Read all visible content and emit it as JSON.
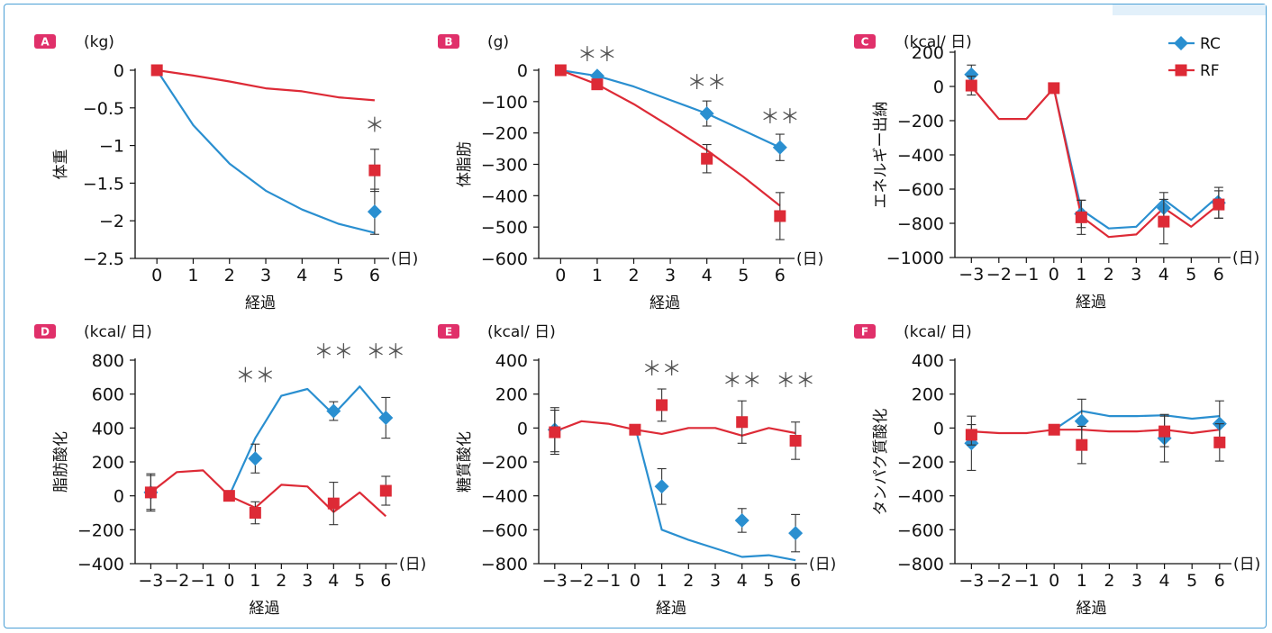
{
  "colors": {
    "rc": "#2a8fd0",
    "rf": "#dd2a36",
    "badge": "#e0306a",
    "frame": "#4a9fd5"
  },
  "legend": [
    {
      "key": "rc",
      "label": "RC"
    },
    {
      "key": "rf",
      "label": "RF"
    }
  ],
  "chart_data": [
    {
      "panel": "A",
      "type": "line",
      "unit": "(kg)",
      "ylabel": "体重",
      "xlabel": "経過",
      "xunit": "(日)",
      "xlim": [
        -0.6,
        6.3
      ],
      "ylim": [
        -2.5,
        0
      ],
      "yticks": [
        0,
        -0.5,
        -1,
        -1.5,
        -2,
        -2.5
      ],
      "ytick_labels": [
        "0",
        "−0.5",
        "−1",
        "−1.5",
        "−2",
        "−2.5"
      ],
      "xticks": [
        0,
        1,
        2,
        3,
        4,
        5,
        6
      ],
      "xtick_labels": [
        "0",
        "1",
        "2",
        "3",
        "4",
        "5",
        "6"
      ],
      "series": [
        {
          "name": "RC",
          "key": "rc",
          "line": [
            [
              0,
              0
            ],
            [
              1,
              -0.73
            ],
            [
              2,
              -1.24
            ],
            [
              3,
              -1.6
            ],
            [
              4,
              -1.85
            ],
            [
              5,
              -2.04
            ],
            [
              6,
              -2.16
            ]
          ],
          "points": [
            {
              "x": 6,
              "y": -1.88,
              "err": 0.3
            }
          ]
        },
        {
          "name": "RF",
          "key": "rf",
          "line": [
            [
              0,
              0
            ],
            [
              1,
              -0.07
            ],
            [
              2,
              -0.15
            ],
            [
              3,
              -0.24
            ],
            [
              4,
              -0.28
            ],
            [
              5,
              -0.36
            ],
            [
              6,
              -0.4
            ]
          ],
          "points": [
            {
              "x": 0,
              "y": 0,
              "err": 0
            },
            {
              "x": 6,
              "y": -1.33,
              "err": 0.28
            }
          ]
        }
      ],
      "annotations": [
        {
          "x": 6,
          "y": -0.82,
          "text": "＊"
        }
      ]
    },
    {
      "panel": "B",
      "type": "line",
      "unit": "(g)",
      "ylabel": "体脂肪",
      "xlabel": "経過",
      "xunit": "(日)",
      "xlim": [
        -0.6,
        6.3
      ],
      "ylim": [
        -600,
        0
      ],
      "yticks": [
        0,
        -100,
        -200,
        -300,
        -400,
        -500,
        -600
      ],
      "ytick_labels": [
        "0",
        "−100",
        "−200",
        "−300",
        "−400",
        "−500",
        "−600"
      ],
      "xticks": [
        0,
        1,
        2,
        3,
        4,
        5,
        6
      ],
      "xtick_labels": [
        "0",
        "1",
        "2",
        "3",
        "4",
        "5",
        "6"
      ],
      "series": [
        {
          "name": "RC",
          "key": "rc",
          "line": [
            [
              0,
              0
            ],
            [
              1,
              -18
            ],
            [
              2,
              -52
            ],
            [
              3,
              -95
            ],
            [
              4,
              -138
            ],
            [
              5,
              -192
            ],
            [
              6,
              -246
            ]
          ],
          "points": [
            {
              "x": 1,
              "y": -18,
              "err": 0
            },
            {
              "x": 4,
              "y": -138,
              "err": 40
            },
            {
              "x": 6,
              "y": -246,
              "err": 42
            }
          ]
        },
        {
          "name": "RF",
          "key": "rf",
          "line": [
            [
              0,
              0
            ],
            [
              1,
              -45
            ],
            [
              2,
              -108
            ],
            [
              3,
              -180
            ],
            [
              4,
              -255
            ],
            [
              5,
              -340
            ],
            [
              6,
              -432
            ]
          ],
          "points": [
            {
              "x": 0,
              "y": 0,
              "err": 0
            },
            {
              "x": 1,
              "y": -45,
              "err": 0
            },
            {
              "x": 4,
              "y": -282,
              "err": 45
            },
            {
              "x": 6,
              "y": -465,
              "err": 75
            }
          ]
        }
      ],
      "annotations": [
        {
          "x": 1,
          "y": 28,
          "text": "＊＊"
        },
        {
          "x": 4,
          "y": -60,
          "text": "＊＊"
        },
        {
          "x": 6,
          "y": -170,
          "text": "＊＊"
        }
      ]
    },
    {
      "panel": "C",
      "type": "line",
      "unit": "(kcal/ 日)",
      "ylabel": "エネルギー出納",
      "xlabel": "経過",
      "xunit": "(日)",
      "xlim": [
        -3.6,
        6.3
      ],
      "ylim": [
        -1000,
        200
      ],
      "yticks": [
        200,
        0,
        -200,
        -400,
        -600,
        -800,
        -1000
      ],
      "ytick_labels": [
        "200",
        "0",
        "−200",
        "−400",
        "−600",
        "−800",
        "−1000"
      ],
      "xticks": [
        -3,
        -2,
        -1,
        0,
        1,
        2,
        3,
        4,
        5,
        6
      ],
      "xtick_labels": [
        "−3",
        "−2",
        "−1",
        "0",
        "1",
        "2",
        "3",
        "4",
        "5",
        "6"
      ],
      "series": [
        {
          "name": "RC",
          "key": "rc",
          "line": [
            [
              0,
              -10
            ],
            [
              1,
              -720
            ],
            [
              2,
              -830
            ],
            [
              3,
              -820
            ],
            [
              4,
              -660
            ],
            [
              5,
              -780
            ],
            [
              6,
              -640
            ]
          ],
          "points": [
            {
              "x": -3,
              "y": 70,
              "err": 55
            },
            {
              "x": 1,
              "y": -745,
              "err": 80
            },
            {
              "x": 4,
              "y": -710,
              "err": 90
            },
            {
              "x": 6,
              "y": -680,
              "err": 90
            }
          ]
        },
        {
          "name": "RF",
          "key": "rf",
          "line": [
            [
              -3,
              0
            ],
            [
              -2,
              -190
            ],
            [
              -1,
              -190
            ],
            [
              0,
              -10
            ],
            [
              1,
              -760
            ],
            [
              2,
              -880
            ],
            [
              3,
              -865
            ],
            [
              4,
              -710
            ],
            [
              5,
              -820
            ],
            [
              6,
              -690
            ]
          ],
          "points": [
            {
              "x": -3,
              "y": 5,
              "err": 55
            },
            {
              "x": 0,
              "y": -10,
              "err": 0
            },
            {
              "x": 1,
              "y": -765,
              "err": 100
            },
            {
              "x": 4,
              "y": -790,
              "err": 130
            },
            {
              "x": 6,
              "y": -690,
              "err": 80
            }
          ]
        }
      ],
      "annotations": []
    },
    {
      "panel": "D",
      "type": "line",
      "unit": "(kcal/ 日)",
      "ylabel": "脂肪酸化",
      "xlabel": "経過",
      "xunit": "(日)",
      "xlim": [
        -3.6,
        6.3
      ],
      "ylim": [
        -400,
        800
      ],
      "yticks": [
        800,
        600,
        400,
        200,
        0,
        -200,
        -400
      ],
      "ytick_labels": [
        "800",
        "600",
        "400",
        "200",
        "0",
        "−200",
        "−400"
      ],
      "xticks": [
        -3,
        -2,
        -1,
        0,
        1,
        2,
        3,
        4,
        5,
        6
      ],
      "xtick_labels": [
        "−3",
        "−2",
        "−1",
        "0",
        "1",
        "2",
        "3",
        "4",
        "5",
        "6"
      ],
      "series": [
        {
          "name": "RC",
          "key": "rc",
          "line": [
            [
              0,
              0
            ],
            [
              1,
              340
            ],
            [
              2,
              590
            ],
            [
              3,
              630
            ],
            [
              4,
              480
            ],
            [
              5,
              645
            ],
            [
              6,
              460
            ]
          ],
          "points": [
            {
              "x": -3,
              "y": 20,
              "err": 100
            },
            {
              "x": 1,
              "y": 220,
              "err": 85
            },
            {
              "x": 4,
              "y": 500,
              "err": 55
            },
            {
              "x": 6,
              "y": 460,
              "err": 120
            }
          ]
        },
        {
          "name": "RF",
          "key": "rf",
          "line": [
            [
              -3,
              20
            ],
            [
              -2,
              140
            ],
            [
              -1,
              150
            ],
            [
              0,
              0
            ],
            [
              1,
              -70
            ],
            [
              2,
              65
            ],
            [
              3,
              55
            ],
            [
              4,
              -95
            ],
            [
              5,
              20
            ],
            [
              6,
              -120
            ]
          ],
          "points": [
            {
              "x": -3,
              "y": 20,
              "err": 110
            },
            {
              "x": 0,
              "y": 0,
              "err": 0
            },
            {
              "x": 1,
              "y": -100,
              "err": 65
            },
            {
              "x": 4,
              "y": -45,
              "err": 125
            },
            {
              "x": 6,
              "y": 30,
              "err": 85
            }
          ]
        }
      ],
      "annotations": [
        {
          "x": 1,
          "y": 670,
          "text": "＊＊"
        },
        {
          "x": 4,
          "y": 810,
          "text": "＊＊"
        },
        {
          "x": 6,
          "y": 810,
          "text": "＊＊"
        }
      ]
    },
    {
      "panel": "E",
      "type": "line",
      "unit": "(kcal/ 日)",
      "ylabel": "糖質酸化",
      "xlabel": "経過",
      "xunit": "(日)",
      "xlim": [
        -3.6,
        6.3
      ],
      "ylim": [
        -800,
        400
      ],
      "yticks": [
        400,
        200,
        0,
        -200,
        -400,
        -600,
        -800
      ],
      "ytick_labels": [
        "400",
        "200",
        "0",
        "−200",
        "−400",
        "−600",
        "−800"
      ],
      "xticks": [
        -3,
        -2,
        -1,
        0,
        1,
        2,
        3,
        4,
        5,
        6
      ],
      "xtick_labels": [
        "−3",
        "−2",
        "−1",
        "0",
        "1",
        "2",
        "3",
        "4",
        "5",
        "6"
      ],
      "series": [
        {
          "name": "RC",
          "key": "rc",
          "line": [
            [
              0,
              10
            ],
            [
              1,
              -600
            ],
            [
              2,
              -660
            ],
            [
              3,
              -710
            ],
            [
              4,
              -760
            ],
            [
              5,
              -750
            ],
            [
              6,
              -780
            ]
          ],
          "points": [
            {
              "x": -3,
              "y": -10,
              "err": 130
            },
            {
              "x": 1,
              "y": -345,
              "err": 105
            },
            {
              "x": 4,
              "y": -545,
              "err": 70
            },
            {
              "x": 6,
              "y": -620,
              "err": 110
            }
          ]
        },
        {
          "name": "RF",
          "key": "rf",
          "line": [
            [
              -3,
              -20
            ],
            [
              -2,
              40
            ],
            [
              -1,
              25
            ],
            [
              0,
              -10
            ],
            [
              1,
              -35
            ],
            [
              2,
              0
            ],
            [
              3,
              0
            ],
            [
              4,
              -45
            ],
            [
              5,
              0
            ],
            [
              6,
              -30
            ]
          ],
          "points": [
            {
              "x": -3,
              "y": -25,
              "err": 130
            },
            {
              "x": 0,
              "y": -10,
              "err": 0
            },
            {
              "x": 1,
              "y": 135,
              "err": 95
            },
            {
              "x": 4,
              "y": 35,
              "err": 125
            },
            {
              "x": 6,
              "y": -75,
              "err": 110
            }
          ]
        }
      ],
      "annotations": [
        {
          "x": 1,
          "y": 310,
          "text": "＊＊"
        },
        {
          "x": 4,
          "y": 240,
          "text": "＊＊"
        },
        {
          "x": 6,
          "y": 240,
          "text": "＊＊"
        }
      ]
    },
    {
      "panel": "F",
      "type": "line",
      "unit": "(kcal/ 日)",
      "ylabel": "タンパク質酸化",
      "xlabel": "経過",
      "xunit": "(日)",
      "xlim": [
        -3.6,
        6.3
      ],
      "ylim": [
        -800,
        400
      ],
      "yticks": [
        400,
        200,
        0,
        -200,
        -400,
        -600,
        -800
      ],
      "ytick_labels": [
        "400",
        "200",
        "0",
        "−200",
        "−400",
        "−600",
        "−800"
      ],
      "xticks": [
        -3,
        -2,
        -1,
        0,
        1,
        2,
        3,
        4,
        5,
        6
      ],
      "xtick_labels": [
        "−3",
        "−2",
        "−1",
        "0",
        "1",
        "2",
        "3",
        "4",
        "5",
        "6"
      ],
      "series": [
        {
          "name": "RC",
          "key": "rc",
          "line": [
            [
              0,
              -10
            ],
            [
              1,
              100
            ],
            [
              2,
              70
            ],
            [
              3,
              70
            ],
            [
              4,
              75
            ],
            [
              5,
              55
            ],
            [
              6,
              70
            ]
          ],
          "points": [
            {
              "x": -3,
              "y": -90,
              "err": 160
            },
            {
              "x": 1,
              "y": 40,
              "err": 130
            },
            {
              "x": 4,
              "y": -60,
              "err": 140
            },
            {
              "x": 6,
              "y": 25,
              "err": 135
            }
          ]
        },
        {
          "name": "RF",
          "key": "rf",
          "line": [
            [
              -3,
              -20
            ],
            [
              -2,
              -30
            ],
            [
              -1,
              -30
            ],
            [
              0,
              -10
            ],
            [
              1,
              -10
            ],
            [
              2,
              -20
            ],
            [
              3,
              -20
            ],
            [
              4,
              -10
            ],
            [
              5,
              -30
            ],
            [
              6,
              -10
            ]
          ],
          "points": [
            {
              "x": -3,
              "y": -40,
              "err": 60
            },
            {
              "x": 0,
              "y": -10,
              "err": 0
            },
            {
              "x": 1,
              "y": -100,
              "err": 110
            },
            {
              "x": 4,
              "y": -20,
              "err": 90
            },
            {
              "x": 6,
              "y": -85,
              "err": 110
            }
          ]
        }
      ],
      "annotations": []
    }
  ]
}
